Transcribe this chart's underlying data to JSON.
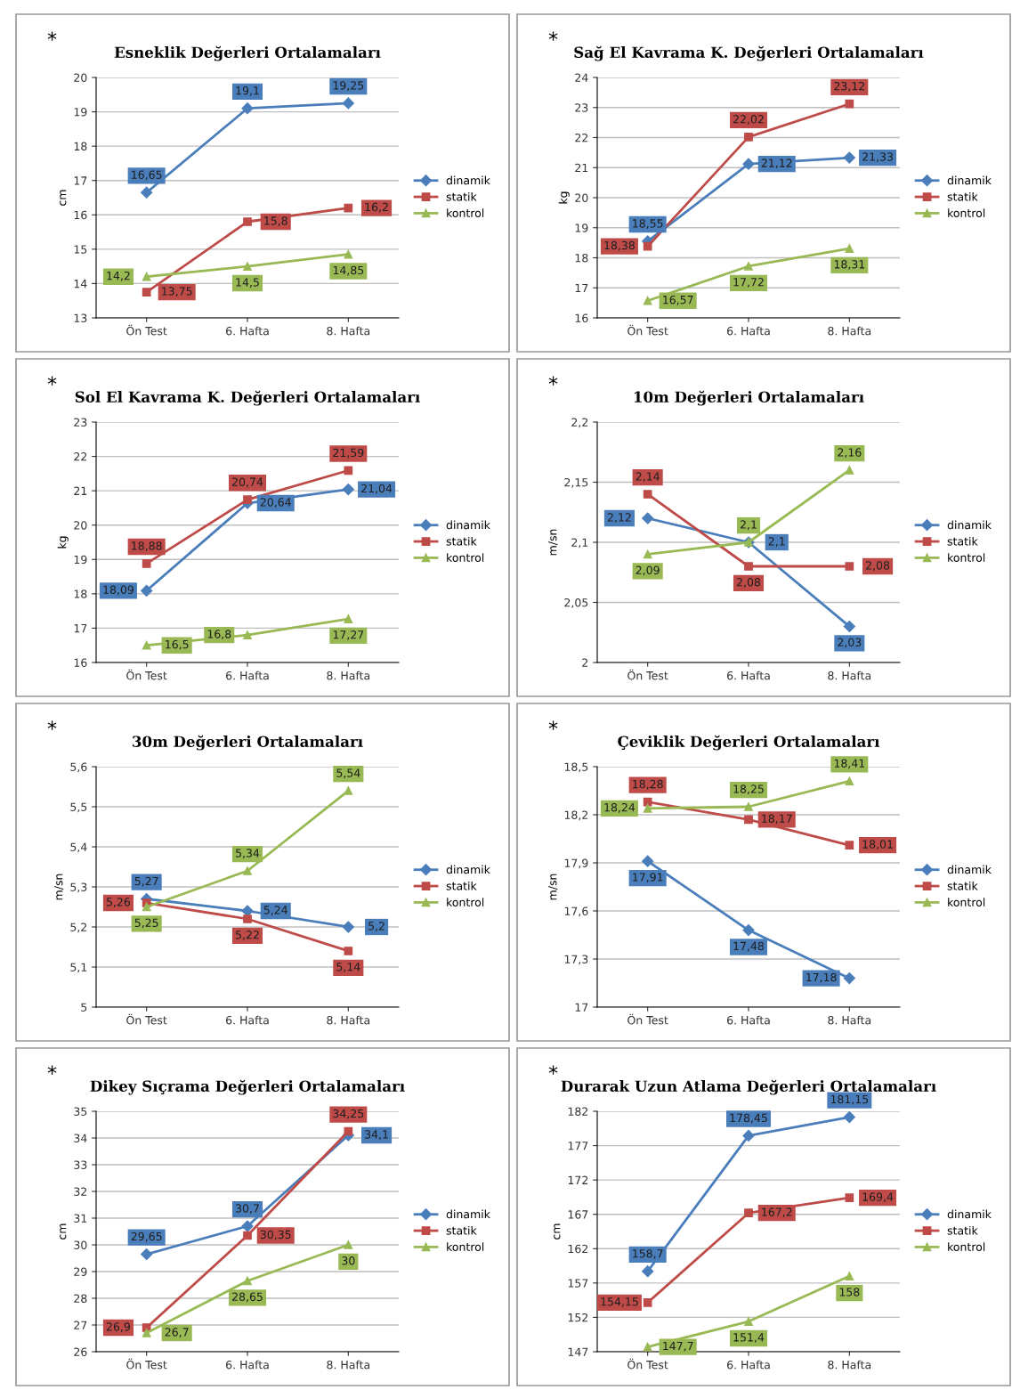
{
  "chart_data": [
    {
      "type": "line",
      "title": "Esneklik Değerleri Ortalamaları",
      "ylabel": "cm",
      "annotations": [
        "*"
      ],
      "categories": [
        "Ön Test",
        "6. Hafta",
        "8. Hafta"
      ],
      "ylim": [
        13,
        20
      ],
      "yticks": [
        13,
        14,
        15,
        16,
        17,
        18,
        19,
        20
      ],
      "grid": "y",
      "legend": "right",
      "series": [
        {
          "name": "dinamik",
          "color": "#4a7ebb",
          "marker": "diamond",
          "values": [
            16.65,
            19.1,
            19.25
          ],
          "value_labels": [
            "16,65",
            "19,1",
            "19,25"
          ]
        },
        {
          "name": "statik",
          "color": "#be4b48",
          "marker": "square",
          "values": [
            13.75,
            15.8,
            16.2
          ],
          "value_labels": [
            "13,75",
            "15,8",
            "16,2"
          ]
        },
        {
          "name": "kontrol",
          "color": "#98b954",
          "marker": "triangle",
          "values": [
            14.2,
            14.5,
            14.85
          ],
          "value_labels": [
            "14,2",
            "14,5",
            "14,85"
          ]
        }
      ]
    },
    {
      "type": "line",
      "title": "Sağ El Kavrama K. Değerleri Ortalamaları",
      "ylabel": "kg",
      "annotations": [
        "*"
      ],
      "categories": [
        "Ön Test",
        "6. Hafta",
        "8. Hafta"
      ],
      "ylim": [
        16,
        24
      ],
      "yticks": [
        16,
        17,
        18,
        19,
        20,
        21,
        22,
        23,
        24
      ],
      "grid": "y",
      "legend": "right",
      "series": [
        {
          "name": "dinamik",
          "color": "#4a7ebb",
          "marker": "diamond",
          "values": [
            18.55,
            21.12,
            21.33
          ],
          "value_labels": [
            "18,55",
            "21,12",
            "21,33"
          ]
        },
        {
          "name": "statik",
          "color": "#be4b48",
          "marker": "square",
          "values": [
            18.38,
            22.02,
            23.12
          ],
          "value_labels": [
            "18,38",
            "22,02",
            "23,12"
          ]
        },
        {
          "name": "kontrol",
          "color": "#98b954",
          "marker": "triangle",
          "values": [
            16.57,
            17.72,
            18.31
          ],
          "value_labels": [
            "16,57",
            "17,72",
            "18,31"
          ]
        }
      ]
    },
    {
      "type": "line",
      "title": "Sol El Kavrama K. Değerleri Ortalamaları",
      "ylabel": "kg",
      "annotations": [
        "*"
      ],
      "categories": [
        "Ön Test",
        "6. Hafta",
        "8. Hafta"
      ],
      "ylim": [
        16,
        23
      ],
      "yticks": [
        16,
        17,
        18,
        19,
        20,
        21,
        22,
        23
      ],
      "grid": "y",
      "legend": "right",
      "series": [
        {
          "name": "dinamik",
          "color": "#4a7ebb",
          "marker": "diamond",
          "values": [
            18.09,
            20.64,
            21.04
          ],
          "value_labels": [
            "18,09",
            "20,64",
            "21,04"
          ]
        },
        {
          "name": "statik",
          "color": "#be4b48",
          "marker": "square",
          "values": [
            18.88,
            20.74,
            21.59
          ],
          "value_labels": [
            "18,88",
            "20,74",
            "21,59"
          ]
        },
        {
          "name": "kontrol",
          "color": "#98b954",
          "marker": "triangle",
          "values": [
            16.5,
            16.8,
            17.27
          ],
          "value_labels": [
            "16,5",
            "16,8",
            "17,27"
          ]
        }
      ]
    },
    {
      "type": "line",
      "title": "10m Değerleri Ortalamaları",
      "ylabel": "m/sn",
      "annotations": [
        "*"
      ],
      "categories": [
        "Ön Test",
        "6. Hafta",
        "8. Hafta"
      ],
      "ylim": [
        2,
        2.2
      ],
      "yticks": [
        2,
        {
          "value": 2.05,
          "label": "2,05"
        },
        {
          "value": 2.1,
          "label": "2,1"
        },
        {
          "value": 2.15,
          "label": "2,15"
        },
        {
          "value": 2.2,
          "label": "2,2"
        }
      ],
      "grid": "y",
      "legend": "right",
      "series": [
        {
          "name": "dinamik",
          "color": "#4a7ebb",
          "marker": "diamond",
          "values": [
            2.12,
            2.1,
            2.03
          ],
          "value_labels": [
            "2,12",
            "2,1",
            "2,03"
          ]
        },
        {
          "name": "statik",
          "color": "#be4b48",
          "marker": "square",
          "values": [
            2.14,
            2.08,
            2.08
          ],
          "value_labels": [
            "2,14",
            "2,08",
            "2,08"
          ]
        },
        {
          "name": "kontrol",
          "color": "#98b954",
          "marker": "triangle",
          "values": [
            2.09,
            2.1,
            2.16
          ],
          "value_labels": [
            "2,09",
            "2,1",
            "2,16"
          ]
        }
      ]
    },
    {
      "type": "line",
      "title": "30m Değerleri Ortalamaları",
      "ylabel": "m/sn",
      "annotations": [
        "*"
      ],
      "categories": [
        "Ön Test",
        "6. Hafta",
        "8. Hafta"
      ],
      "ylim": [
        5,
        5.6
      ],
      "yticks": [
        5,
        {
          "value": 5.1,
          "label": "5,1"
        },
        {
          "value": 5.2,
          "label": "5,2"
        },
        {
          "value": 5.3,
          "label": "5,3"
        },
        {
          "value": 5.4,
          "label": "5,4"
        },
        {
          "value": 5.5,
          "label": "5,5"
        },
        {
          "value": 5.6,
          "label": "5,6"
        }
      ],
      "grid": "y",
      "legend": "right",
      "series": [
        {
          "name": "dinamik",
          "color": "#4a7ebb",
          "marker": "diamond",
          "values": [
            5.27,
            5.24,
            5.2
          ],
          "value_labels": [
            "5,27",
            "5,24",
            "5,2"
          ]
        },
        {
          "name": "statik",
          "color": "#be4b48",
          "marker": "square",
          "values": [
            5.26,
            5.22,
            5.14
          ],
          "value_labels": [
            "5,26",
            "5,22",
            "5,14"
          ]
        },
        {
          "name": "kontrol",
          "color": "#98b954",
          "marker": "triangle",
          "values": [
            5.25,
            5.34,
            5.54
          ],
          "value_labels": [
            "5,25",
            "5,34",
            "5,54"
          ]
        }
      ]
    },
    {
      "type": "line",
      "title": "Çeviklik Değerleri Ortalamaları",
      "ylabel": "m/sn",
      "annotations": [
        "*"
      ],
      "categories": [
        "Ön Test",
        "6. Hafta",
        "8. Hafta"
      ],
      "ylim": [
        17,
        18.5
      ],
      "yticks": [
        17,
        {
          "value": 17.3,
          "label": "17,3"
        },
        {
          "value": 17.6,
          "label": "17,6"
        },
        {
          "value": 17.9,
          "label": "17,9"
        },
        {
          "value": 18.2,
          "label": "18,2"
        },
        {
          "value": 18.5,
          "label": "18,5"
        }
      ],
      "grid": "y",
      "legend": "right",
      "series": [
        {
          "name": "dinamik",
          "color": "#4a7ebb",
          "marker": "diamond",
          "values": [
            17.91,
            17.48,
            17.18
          ],
          "value_labels": [
            "17,91",
            "17,48",
            "17,18"
          ]
        },
        {
          "name": "statik",
          "color": "#be4b48",
          "marker": "square",
          "values": [
            18.28,
            18.17,
            18.01
          ],
          "value_labels": [
            "18,28",
            "18,17",
            "18,01"
          ]
        },
        {
          "name": "kontrol",
          "color": "#98b954",
          "marker": "triangle",
          "values": [
            18.24,
            18.25,
            18.41
          ],
          "value_labels": [
            "18,24",
            "18,25",
            "18,41"
          ]
        }
      ]
    },
    {
      "type": "line",
      "title": "Dikey Sıçrama Değerleri Ortalamaları",
      "ylabel": "cm",
      "annotations": [
        "*"
      ],
      "categories": [
        "Ön Test",
        "6. Hafta",
        "8. Hafta"
      ],
      "ylim": [
        26,
        35
      ],
      "yticks": [
        26,
        27,
        28,
        29,
        30,
        31,
        32,
        33,
        34,
        35
      ],
      "grid": "y",
      "legend": "right",
      "series": [
        {
          "name": "dinamik",
          "color": "#4a7ebb",
          "marker": "diamond",
          "values": [
            29.65,
            30.7,
            34.1
          ],
          "value_labels": [
            "29,65",
            "30,7",
            "34,1"
          ]
        },
        {
          "name": "statik",
          "color": "#be4b48",
          "marker": "square",
          "values": [
            26.9,
            30.35,
            34.25
          ],
          "value_labels": [
            "26,9",
            "30,35",
            "34,25"
          ]
        },
        {
          "name": "kontrol",
          "color": "#98b954",
          "marker": "triangle",
          "values": [
            26.7,
            28.65,
            30
          ],
          "value_labels": [
            "26,7",
            "28,65",
            "30"
          ]
        }
      ]
    },
    {
      "type": "line",
      "title": "Durarak Uzun Atlama Değerleri Ortalamaları",
      "ylabel": "cm",
      "annotations": [
        "*"
      ],
      "categories": [
        "Ön Test",
        "6. Hafta",
        "8. Hafta"
      ],
      "ylim": [
        147,
        182
      ],
      "yticks": [
        147,
        152,
        157,
        162,
        167,
        172,
        177,
        182
      ],
      "grid": "y",
      "legend": "right",
      "series": [
        {
          "name": "dinamik",
          "color": "#4a7ebb",
          "marker": "diamond",
          "values": [
            158.7,
            178.45,
            181.15
          ],
          "value_labels": [
            "158,7",
            "178,45",
            "181,15"
          ]
        },
        {
          "name": "statik",
          "color": "#be4b48",
          "marker": "square",
          "values": [
            154.15,
            167.2,
            169.4
          ],
          "value_labels": [
            "154,15",
            "167,2",
            "169,4"
          ]
        },
        {
          "name": "kontrol",
          "color": "#98b954",
          "marker": "triangle",
          "values": [
            147.7,
            151.4,
            158
          ],
          "value_labels": [
            "147,7",
            "151,4",
            "158"
          ]
        }
      ]
    }
  ]
}
